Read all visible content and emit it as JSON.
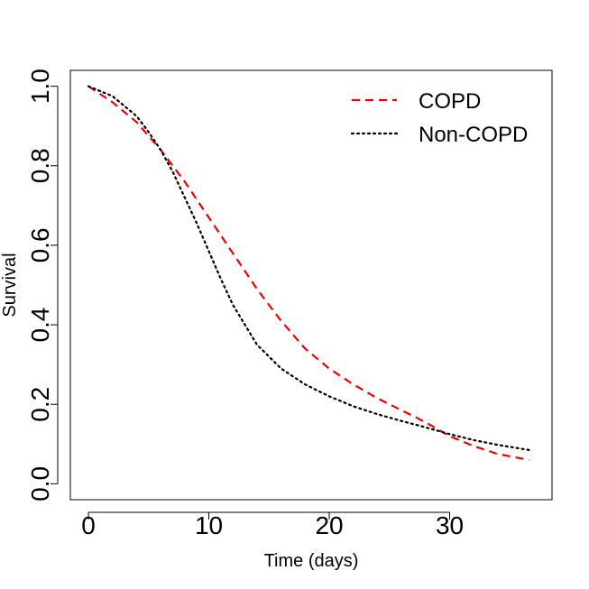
{
  "chart_data": {
    "type": "line",
    "title": "",
    "xlabel": "Time (days)",
    "ylabel": "Survival",
    "xlim": [
      -1.5,
      38.5
    ],
    "ylim": [
      -0.04,
      1.04
    ],
    "xticks": [
      0,
      10,
      20,
      30
    ],
    "xtick_labels": [
      "0",
      "10",
      "20",
      "30"
    ],
    "yticks": [
      0.0,
      0.2,
      0.4,
      0.6,
      0.8,
      1.0
    ],
    "ytick_labels": [
      "0.0",
      "0.2",
      "0.4",
      "0.6",
      "0.8",
      "1.0"
    ],
    "grid": false,
    "legend_position": "top-right",
    "series": [
      {
        "name": "COPD",
        "color": "#ee0000",
        "style": "dashed",
        "x": [
          0,
          2,
          4,
          6,
          8,
          10,
          12,
          14,
          16,
          18,
          20,
          22,
          24,
          26,
          28,
          30,
          32,
          34,
          36.6
        ],
        "y": [
          1.0,
          0.96,
          0.91,
          0.84,
          0.76,
          0.67,
          0.58,
          0.49,
          0.41,
          0.34,
          0.29,
          0.25,
          0.215,
          0.185,
          0.155,
          0.12,
          0.095,
          0.075,
          0.06
        ]
      },
      {
        "name": "Non-COPD",
        "color": "#000000",
        "style": "dotted",
        "x": [
          0,
          2,
          4,
          5,
          6,
          7,
          8,
          9,
          10,
          11,
          12,
          14,
          16,
          18,
          20,
          22,
          24,
          26,
          28,
          30,
          32,
          34,
          36.6
        ],
        "y": [
          1.0,
          0.975,
          0.925,
          0.885,
          0.84,
          0.785,
          0.72,
          0.655,
          0.585,
          0.515,
          0.45,
          0.35,
          0.29,
          0.25,
          0.22,
          0.195,
          0.175,
          0.158,
          0.142,
          0.125,
          0.11,
          0.098,
          0.085
        ]
      }
    ]
  }
}
